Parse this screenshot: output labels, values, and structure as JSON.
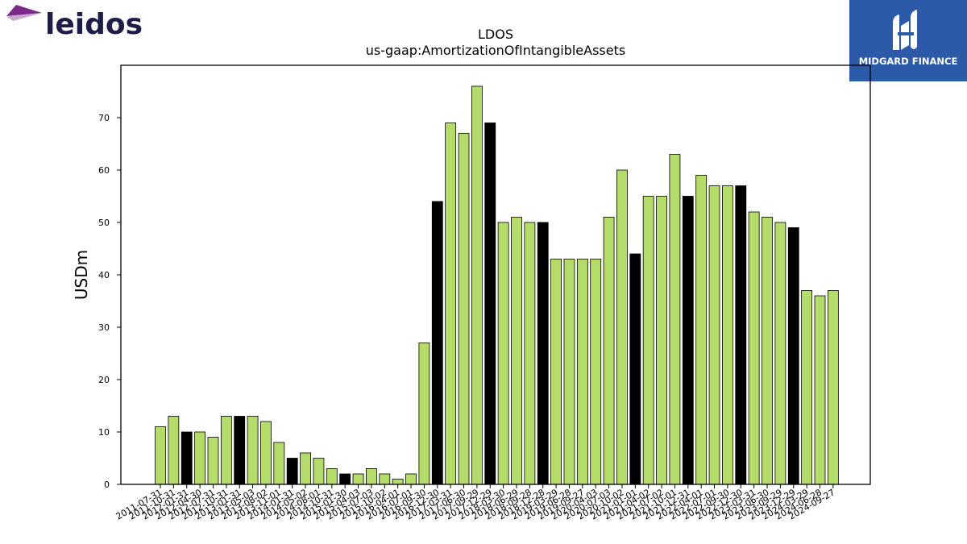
{
  "logos": {
    "left_brand": "leidos",
    "right_brand": "MIDGARD FINANCE"
  },
  "colors": {
    "bar_default": "#b5dc6a",
    "bar_highlight": "#000000",
    "bar_edge": "#000000",
    "leidos_text": "#1e1d49",
    "leidos_mark": "#7b2a8a",
    "midgard_bg": "#2d5aa8"
  },
  "chart_data": {
    "type": "bar",
    "title": "LDOS",
    "subtitle": "us-gaap:AmortizationOfIntangibleAssets",
    "xlabel": "",
    "ylabel": "USDm",
    "ylim": [
      0,
      80
    ],
    "yticks": [
      0,
      10,
      20,
      30,
      40,
      50,
      60,
      70
    ],
    "grid": false,
    "legend": "none",
    "categories": [
      "2011-07-31",
      "2011-10-31",
      "2012-01-31",
      "2012-04-30",
      "2012-07-31",
      "2012-10-31",
      "2013-01-31",
      "2013-05-03",
      "2013-08-02",
      "2013-11-01",
      "2014-01-31",
      "2014-05-02",
      "2014-08-01",
      "2014-10-31",
      "2015-01-30",
      "2015-04-03",
      "2015-07-03",
      "2015-10-02",
      "2016-04-01",
      "2016-07-01",
      "2016-09-30",
      "2016-12-30",
      "2017-03-31",
      "2017-06-30",
      "2017-09-29",
      "2017-12-29",
      "2018-03-30",
      "2018-06-29",
      "2018-09-28",
      "2018-12-28",
      "2019-03-29",
      "2019-06-28",
      "2019-09-27",
      "2020-04-03",
      "2020-07-03",
      "2020-10-02",
      "2021-01-01",
      "2021-04-02",
      "2021-07-02",
      "2021-10-01",
      "2021-12-31",
      "2022-04-01",
      "2022-07-01",
      "2022-09-30",
      "2022-12-30",
      "2023-03-31",
      "2023-06-30",
      "2023-09-29",
      "2023-12-29",
      "2024-03-29",
      "2024-06-28",
      "2024-09-27"
    ],
    "values": [
      11,
      13,
      10,
      10,
      9,
      13,
      13,
      13,
      12,
      8,
      5,
      6,
      5,
      3,
      2,
      2,
      3,
      2,
      1,
      2,
      27,
      54,
      69,
      67,
      76,
      69,
      50,
      51,
      50,
      50,
      43,
      43,
      43,
      43,
      51,
      60,
      44,
      55,
      55,
      63,
      55,
      59,
      57,
      57,
      57,
      52,
      51,
      50,
      49,
      37,
      36,
      37
    ],
    "highlighted": [
      0,
      0,
      1,
      0,
      0,
      0,
      1,
      0,
      0,
      0,
      1,
      0,
      0,
      0,
      1,
      0,
      0,
      0,
      0,
      0,
      0,
      1,
      0,
      0,
      0,
      1,
      0,
      0,
      0,
      1,
      0,
      0,
      0,
      0,
      0,
      0,
      1,
      0,
      0,
      0,
      1,
      0,
      0,
      0,
      1,
      0,
      0,
      0,
      1,
      0,
      0,
      0
    ]
  }
}
